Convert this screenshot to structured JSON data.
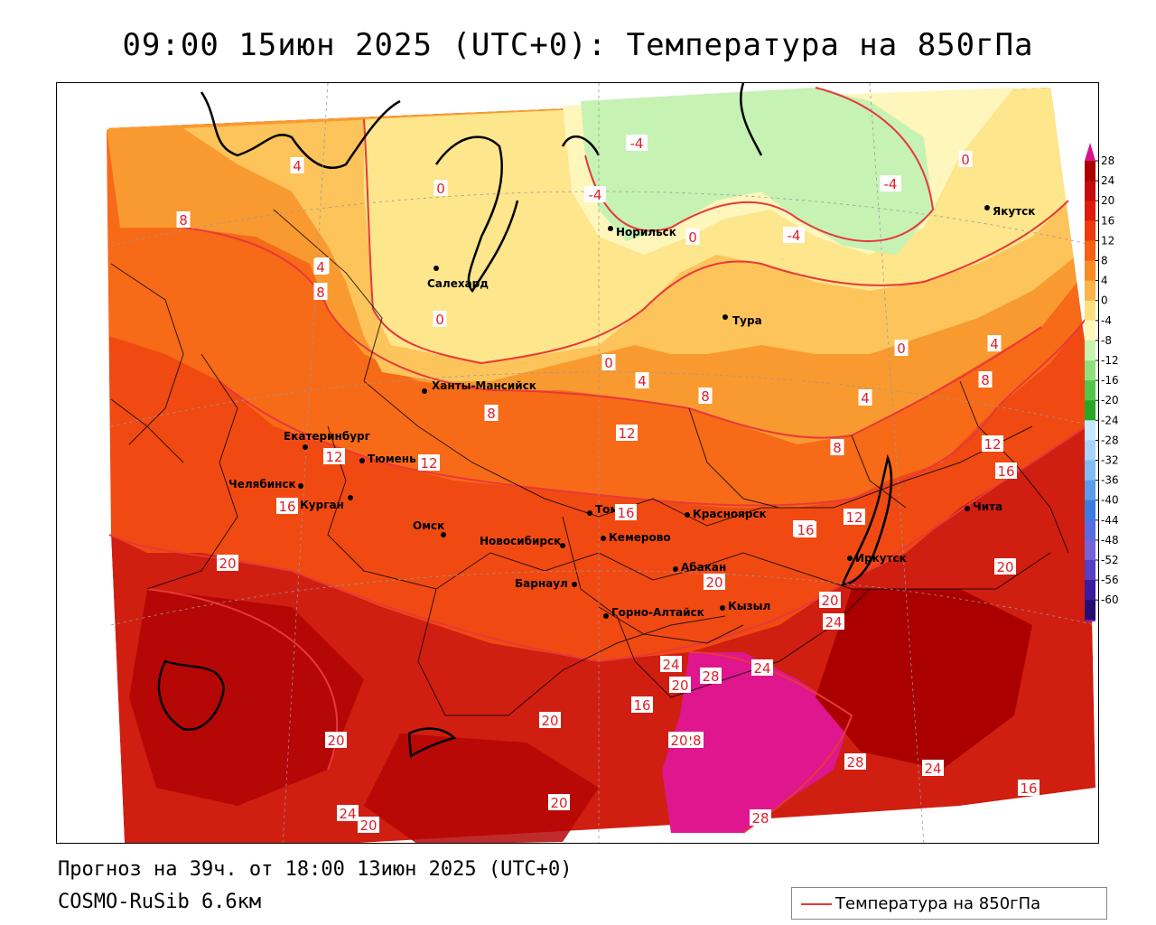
{
  "title": "09:00 15июн 2025 (UTC+0): Температура на 850гПа",
  "forecast_info": "Прогноз на 39ч. от 18:00 13июн 2025 (UTC+0)",
  "model_info": "COSMO-RuSib 6.6км",
  "legend": {
    "label": "Температура на 850гПа",
    "line_color": "#e8383a"
  },
  "cities": [
    {
      "name": "Норильск"
    },
    {
      "name": "Якутск"
    },
    {
      "name": "Салехард"
    },
    {
      "name": "Тура"
    },
    {
      "name": "Ханты-Мансийск"
    },
    {
      "name": "Екатеринбург"
    },
    {
      "name": "Тюмень"
    },
    {
      "name": "Челябинск"
    },
    {
      "name": "Курган"
    },
    {
      "name": "Омск"
    },
    {
      "name": "Новосибирск"
    },
    {
      "name": "Томск"
    },
    {
      "name": "Кемерово"
    },
    {
      "name": "Красноярск"
    },
    {
      "name": "Барнаул"
    },
    {
      "name": "Абакан"
    },
    {
      "name": "Горно-Алтайск"
    },
    {
      "name": "Кызыл"
    },
    {
      "name": "Иркутск"
    },
    {
      "name": "Чита"
    }
  ],
  "contour_labels": [
    "-4",
    "-4",
    "-4",
    "-4",
    "4",
    "8",
    "4",
    "8",
    "0",
    "0",
    "0",
    "0",
    "4",
    "8",
    "0",
    "4",
    "0",
    "4",
    "8",
    "8",
    "12",
    "8",
    "12",
    "12",
    "16",
    "12",
    "16",
    "12",
    "16",
    "20",
    "16",
    "20",
    "20",
    "24",
    "20",
    "16",
    "24",
    "20",
    "28",
    "24",
    "16",
    "20",
    "28",
    "20",
    "20",
    "28",
    "24",
    "16",
    "24",
    "20",
    "20",
    "28",
    "4",
    "8",
    "4"
  ],
  "colorbar": {
    "ticks": [
      "28",
      "24",
      "20",
      "16",
      "12",
      "8",
      "4",
      "0",
      "-4",
      "-8",
      "-12",
      "-16",
      "-20",
      "-24",
      "-28",
      "-32",
      "-36",
      "-40",
      "-44",
      "-48",
      "-52",
      "-56",
      "-60"
    ],
    "colors": [
      "#aa0000",
      "#c40c0c",
      "#e01a0c",
      "#ee3a0a",
      "#f66012",
      "#f98c22",
      "#fbb448",
      "#fde07e",
      "#fff8b8",
      "#c8f4b0",
      "#8ee07c",
      "#52c646",
      "#26a824",
      "#c8e8ff",
      "#a8d4fb",
      "#82bcf4",
      "#5c9ceb",
      "#3a7ce0",
      "#5a6ce0",
      "#7464d8",
      "#5840c4",
      "#3a1c9c",
      "#260e70"
    ],
    "top_color": "#d8148c",
    "bottom_color": "#8a1ccc"
  }
}
